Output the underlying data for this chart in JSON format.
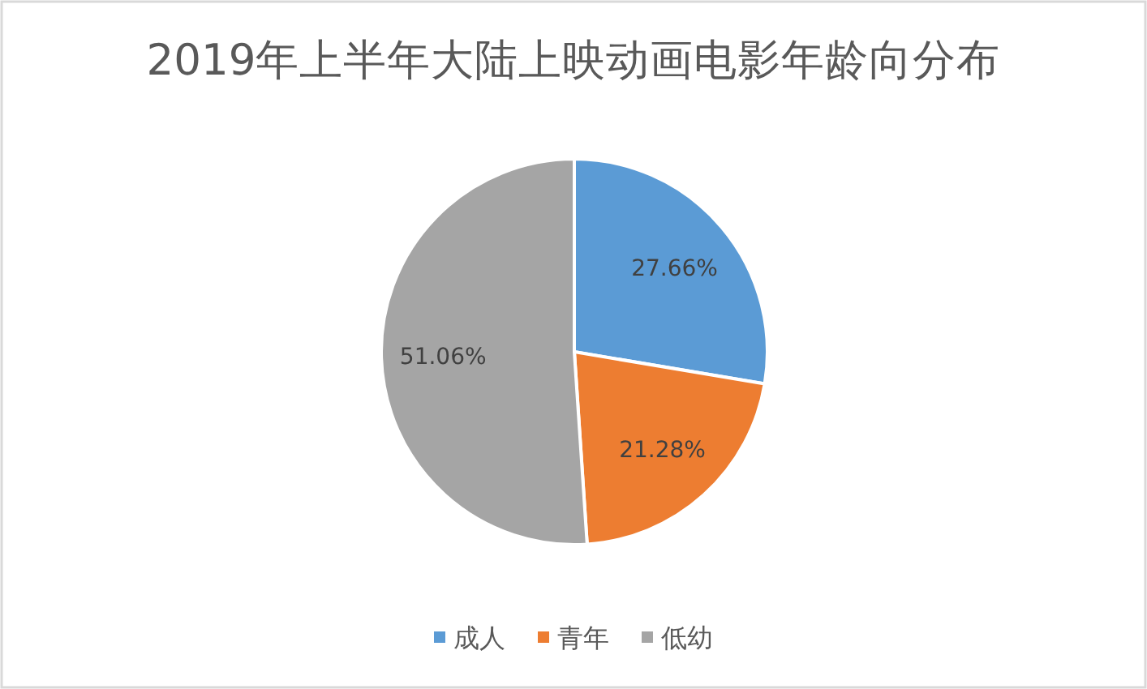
{
  "chart_data": {
    "type": "pie",
    "title": "2019年上半年大陆上映动画电影年龄向分布",
    "categories": [
      "成人",
      "青年",
      "低幼"
    ],
    "values": [
      27.66,
      21.28,
      51.06
    ],
    "colors": [
      "#5b9bd5",
      "#ed7d31",
      "#a5a5a5"
    ],
    "value_labels": [
      "27.66%",
      "21.28%",
      "51.06%"
    ],
    "legend": "bottom"
  }
}
